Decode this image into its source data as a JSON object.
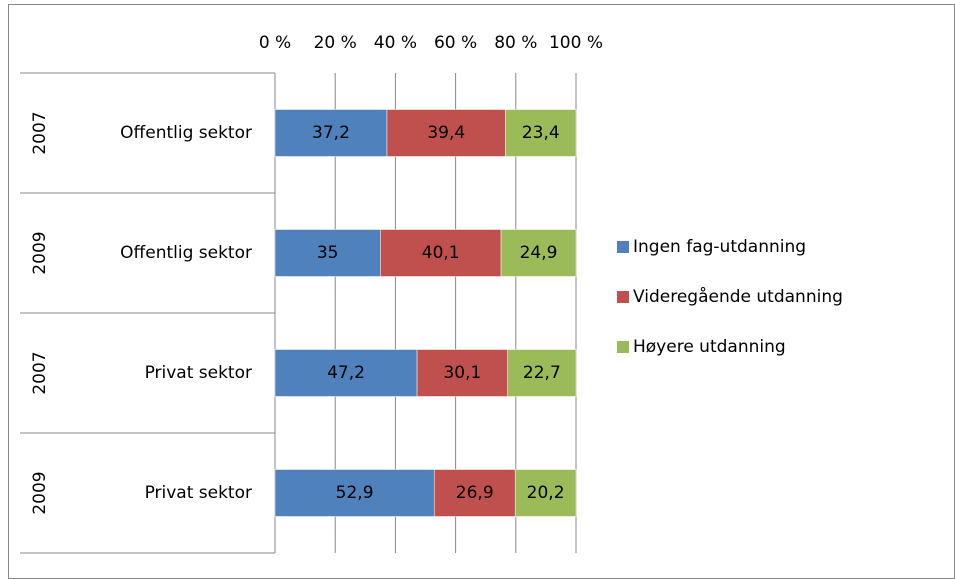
{
  "chart_data": {
    "type": "stacked_bar_horizontal",
    "categories": [
      "Offentlig sektor",
      "Offentlig sektor",
      "Privat sektor",
      "Privat sektor"
    ],
    "category_groups": [
      "2007",
      "2009",
      "2007",
      "2009"
    ],
    "series": [
      {
        "name": "Ingen fag-utdanning",
        "color": "#4f81bd",
        "values": [
          37.2,
          35,
          47.2,
          52.9
        ],
        "value_labels": [
          "37,2",
          "35",
          "47,2",
          "52,9"
        ]
      },
      {
        "name": "Videregående utdanning",
        "color": "#c0504d",
        "values": [
          39.4,
          40.1,
          30.1,
          26.9
        ],
        "value_labels": [
          "39,4",
          "40,1",
          "30,1",
          "26,9"
        ]
      },
      {
        "name": "Høyere utdanning",
        "color": "#9bbb59",
        "values": [
          23.4,
          24.9,
          22.7,
          20.2
        ],
        "value_labels": [
          "23,4",
          "24,9",
          "22,7",
          "20,2"
        ]
      }
    ],
    "xlim": [
      0,
      100
    ],
    "xticks": [
      {
        "value": 0,
        "label": "0 %"
      },
      {
        "value": 20,
        "label": "20 %"
      },
      {
        "value": 40,
        "label": "40 %"
      },
      {
        "value": 60,
        "label": "60 %"
      },
      {
        "value": 80,
        "label": "80 %"
      },
      {
        "value": 100,
        "label": "100 %"
      }
    ],
    "grid": true,
    "legend": "right"
  }
}
